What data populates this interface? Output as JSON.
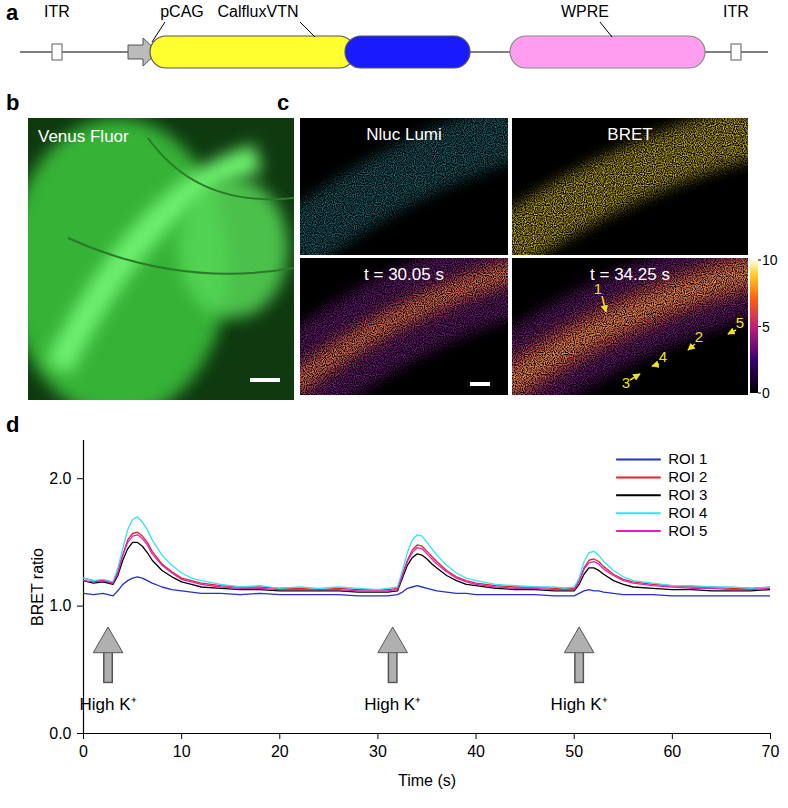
{
  "panels": {
    "a": {
      "label": "a",
      "elements": [
        {
          "label": "ITR"
        },
        {
          "label": "pCAG"
        },
        {
          "label": "CalfluxVTN"
        },
        {
          "label": "WPRE"
        },
        {
          "label": "ITR"
        }
      ]
    },
    "b": {
      "label": "b",
      "image_label": "Venus Fluor"
    },
    "c": {
      "label": "c",
      "images": [
        {
          "label": "Nluc Lumi"
        },
        {
          "label": "BRET"
        },
        {
          "label": "t = 30.05 s"
        },
        {
          "label": "t = 34.25 s"
        }
      ],
      "rois": [
        "1",
        "2",
        "3",
        "4",
        "5"
      ],
      "colorbar": {
        "range": [
          0,
          10
        ],
        "ticks": [
          0,
          5,
          10
        ]
      }
    }
  },
  "chart_data": {
    "panel_label": "d",
    "type": "line",
    "x_label": "Time (s)",
    "y_label": "BRET ratio",
    "xlim": [
      0,
      70
    ],
    "xticks": [
      0,
      10,
      20,
      30,
      40,
      50,
      60,
      70
    ],
    "ylim": [
      0,
      2.3
    ],
    "yticks": [
      0,
      1,
      2
    ],
    "grid": false,
    "legend": "top-right",
    "x": [
      0,
      1,
      2,
      3,
      3.5,
      4,
      4.5,
      5,
      5.5,
      6,
      6.5,
      7,
      8,
      9,
      10,
      11,
      12,
      14,
      16,
      18,
      20,
      22,
      24,
      26,
      28,
      30,
      31,
      32,
      32.5,
      33,
      33.5,
      34,
      34.5,
      35,
      35.5,
      36,
      37,
      38,
      39,
      40,
      42,
      44,
      46,
      48,
      49,
      50,
      50.5,
      51,
      51.5,
      52,
      52.5,
      53,
      54,
      55,
      56,
      58,
      60,
      62,
      64,
      66,
      68,
      70
    ],
    "series": [
      {
        "name": "ROI 1",
        "color": "#2430d0",
        "values": [
          1.1,
          1.09,
          1.1,
          1.08,
          1.12,
          1.17,
          1.2,
          1.22,
          1.23,
          1.22,
          1.2,
          1.18,
          1.15,
          1.13,
          1.12,
          1.11,
          1.1,
          1.1,
          1.09,
          1.1,
          1.09,
          1.09,
          1.09,
          1.09,
          1.08,
          1.08,
          1.08,
          1.09,
          1.11,
          1.14,
          1.15,
          1.16,
          1.15,
          1.14,
          1.13,
          1.12,
          1.11,
          1.1,
          1.1,
          1.09,
          1.09,
          1.09,
          1.09,
          1.08,
          1.08,
          1.08,
          1.1,
          1.12,
          1.13,
          1.12,
          1.12,
          1.11,
          1.1,
          1.09,
          1.09,
          1.09,
          1.08,
          1.08,
          1.08,
          1.08,
          1.08,
          1.08
        ]
      },
      {
        "name": "ROI 2",
        "color": "#e8202a",
        "values": [
          1.22,
          1.2,
          1.2,
          1.18,
          1.27,
          1.4,
          1.52,
          1.57,
          1.58,
          1.55,
          1.5,
          1.43,
          1.33,
          1.27,
          1.22,
          1.2,
          1.18,
          1.16,
          1.15,
          1.15,
          1.14,
          1.14,
          1.13,
          1.14,
          1.13,
          1.13,
          1.13,
          1.14,
          1.25,
          1.36,
          1.44,
          1.48,
          1.47,
          1.43,
          1.39,
          1.35,
          1.28,
          1.23,
          1.2,
          1.18,
          1.16,
          1.15,
          1.15,
          1.14,
          1.14,
          1.14,
          1.2,
          1.3,
          1.36,
          1.37,
          1.35,
          1.31,
          1.25,
          1.21,
          1.19,
          1.17,
          1.16,
          1.15,
          1.15,
          1.14,
          1.14,
          1.15
        ]
      },
      {
        "name": "ROI 3",
        "color": "#000000",
        "values": [
          1.2,
          1.18,
          1.19,
          1.17,
          1.24,
          1.36,
          1.45,
          1.5,
          1.5,
          1.47,
          1.42,
          1.36,
          1.28,
          1.23,
          1.19,
          1.17,
          1.15,
          1.14,
          1.13,
          1.13,
          1.12,
          1.12,
          1.12,
          1.12,
          1.11,
          1.11,
          1.11,
          1.12,
          1.22,
          1.32,
          1.38,
          1.41,
          1.4,
          1.37,
          1.33,
          1.3,
          1.24,
          1.2,
          1.17,
          1.16,
          1.14,
          1.13,
          1.13,
          1.12,
          1.12,
          1.12,
          1.17,
          1.25,
          1.3,
          1.3,
          1.28,
          1.25,
          1.2,
          1.17,
          1.15,
          1.14,
          1.13,
          1.13,
          1.12,
          1.12,
          1.12,
          1.13
        ]
      },
      {
        "name": "ROI 4",
        "color": "#30e4f0",
        "values": [
          1.22,
          1.2,
          1.21,
          1.19,
          1.3,
          1.45,
          1.6,
          1.68,
          1.7,
          1.66,
          1.6,
          1.52,
          1.4,
          1.32,
          1.26,
          1.22,
          1.2,
          1.17,
          1.15,
          1.16,
          1.14,
          1.15,
          1.14,
          1.15,
          1.14,
          1.13,
          1.14,
          1.15,
          1.28,
          1.42,
          1.52,
          1.56,
          1.55,
          1.5,
          1.45,
          1.4,
          1.32,
          1.26,
          1.22,
          1.2,
          1.17,
          1.16,
          1.15,
          1.15,
          1.14,
          1.15,
          1.22,
          1.35,
          1.42,
          1.43,
          1.4,
          1.35,
          1.28,
          1.23,
          1.2,
          1.18,
          1.16,
          1.16,
          1.15,
          1.15,
          1.14,
          1.15
        ]
      },
      {
        "name": "ROI 5",
        "color": "#e020c0",
        "values": [
          1.2,
          1.19,
          1.2,
          1.18,
          1.26,
          1.4,
          1.5,
          1.55,
          1.56,
          1.53,
          1.48,
          1.41,
          1.32,
          1.26,
          1.21,
          1.19,
          1.17,
          1.15,
          1.14,
          1.14,
          1.13,
          1.13,
          1.13,
          1.13,
          1.12,
          1.12,
          1.12,
          1.13,
          1.24,
          1.35,
          1.42,
          1.46,
          1.45,
          1.41,
          1.37,
          1.33,
          1.27,
          1.22,
          1.19,
          1.17,
          1.15,
          1.14,
          1.14,
          1.13,
          1.13,
          1.13,
          1.19,
          1.29,
          1.34,
          1.35,
          1.33,
          1.29,
          1.24,
          1.2,
          1.18,
          1.16,
          1.15,
          1.14,
          1.14,
          1.13,
          1.13,
          1.14
        ]
      }
    ],
    "annotations": [
      {
        "x": 2.5,
        "text": "High K⁺"
      },
      {
        "x": 31.5,
        "text": "High K⁺"
      },
      {
        "x": 50.5,
        "text": "High K⁺"
      }
    ]
  }
}
